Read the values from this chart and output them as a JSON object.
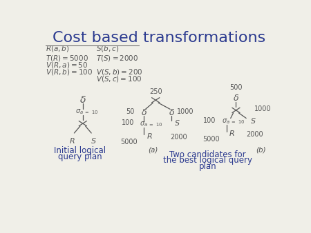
{
  "title": "Cost based transformations",
  "title_color": "#2b3a8f",
  "title_fontsize": 16,
  "bg_color": "#f0efe8",
  "text_color": "#2b3a8f",
  "dark_color": "#555555",
  "caption_left": [
    "Initial logical",
    "query plan"
  ],
  "caption_right": [
    "Two candidates for",
    "the best logical query",
    "plan"
  ],
  "label_a": "(a)",
  "label_b": "(b)"
}
